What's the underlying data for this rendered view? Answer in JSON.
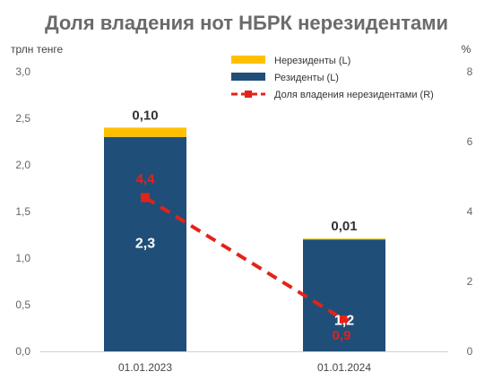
{
  "chart_data": {
    "type": "bar",
    "title": "Доля владения нот НБРК нерезидентами",
    "ylabel_left": "трлн тенге",
    "ylabel_right": "%",
    "categories": [
      "01.01.2023",
      "01.01.2024"
    ],
    "ylim_left": [
      0,
      3.0
    ],
    "ylim_right": [
      0,
      8
    ],
    "yticks_left": [
      "0,0",
      "0,5",
      "1,0",
      "1,5",
      "2,0",
      "2,5",
      "3,0"
    ],
    "yticks_right": [
      "0",
      "2",
      "4",
      "6",
      "8"
    ],
    "stacked": true,
    "legend_position": "top-center",
    "grid": false,
    "series": [
      {
        "name": "Резиденты (L)",
        "kind": "bar",
        "axis": "left",
        "color": "#1f4e79",
        "values": [
          2.3,
          1.2
        ],
        "labels": [
          "2,3",
          "1,2"
        ]
      },
      {
        "name": "Нерезиденты (L)",
        "kind": "bar",
        "axis": "left",
        "color": "#ffc000",
        "values": [
          0.1,
          0.01
        ],
        "labels": [
          "0,10",
          "0,01"
        ]
      },
      {
        "name": "Доля владения нерезидентами (R)",
        "kind": "line",
        "axis": "right",
        "color": "#e2231a",
        "style": "dashed",
        "marker": "square",
        "values": [
          4.4,
          0.9
        ],
        "labels": [
          "4,4",
          "0,9"
        ]
      }
    ]
  }
}
